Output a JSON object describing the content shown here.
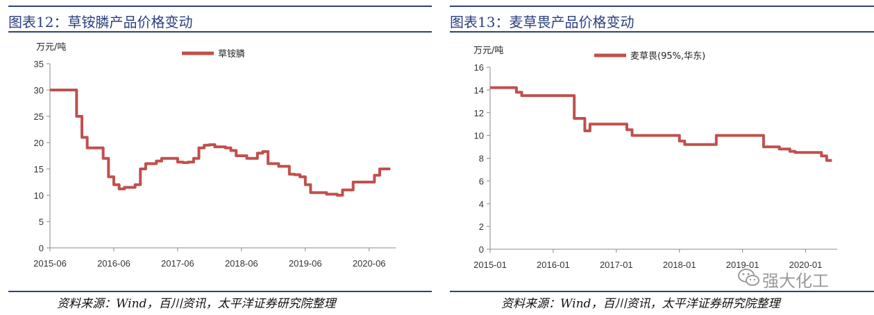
{
  "panels": [
    {
      "title": "图表12：草铵膦产品价格变动",
      "source": "资料来源：Wind，百川资讯，太平洋证券研究院整理"
    },
    {
      "title": "图表13：麦草畏产品价格变动",
      "source": "资料来源：Wind，百川资讯，太平洋证券研究院整理"
    }
  ],
  "watermark": {
    "text": "强大化工"
  },
  "chart_data": [
    {
      "type": "line",
      "title": "图表12：草铵膦产品价格变动",
      "ylabel": "万元/吨",
      "xlabel": "",
      "ylim": [
        0,
        35
      ],
      "yticks": [
        0,
        5,
        10,
        15,
        20,
        25,
        30,
        35
      ],
      "xlim": [
        "2015-06",
        "2020-11"
      ],
      "xticks": [
        "2015-06",
        "2016-06",
        "2017-06",
        "2018-06",
        "2019-06",
        "2020-06"
      ],
      "legend_position": "top-center",
      "series_color": "#c0504d",
      "series": [
        {
          "name": "草铵膦",
          "x": [
            "2015-06",
            "2015-08",
            "2015-09",
            "2015-10",
            "2015-11",
            "2015-12",
            "2016-01",
            "2016-02",
            "2016-03",
            "2016-04",
            "2016-05",
            "2016-06",
            "2016-07",
            "2016-08",
            "2016-09",
            "2016-10",
            "2016-11",
            "2016-12",
            "2017-01",
            "2017-02",
            "2017-03",
            "2017-04",
            "2017-06",
            "2017-07",
            "2017-08",
            "2017-09",
            "2017-10",
            "2017-11",
            "2017-12",
            "2018-01",
            "2018-02",
            "2018-03",
            "2018-04",
            "2018-05",
            "2018-06",
            "2018-07",
            "2018-08",
            "2018-09",
            "2018-10",
            "2018-11",
            "2018-12",
            "2019-01",
            "2019-02",
            "2019-03",
            "2019-04",
            "2019-05",
            "2019-06",
            "2019-07",
            "2019-08",
            "2019-09",
            "2019-10",
            "2019-11",
            "2019-12",
            "2020-01",
            "2020-02",
            "2020-03",
            "2020-04",
            "2020-05",
            "2020-06",
            "2020-07",
            "2020-08",
            "2020-09",
            "2020-10"
          ],
          "values": [
            30,
            30,
            30,
            30,
            25,
            21,
            19,
            19,
            19,
            17,
            13.5,
            12,
            11.2,
            11.5,
            11.5,
            12,
            15,
            16,
            16,
            16.5,
            17,
            17,
            16.3,
            16.2,
            16.3,
            17,
            19,
            19.5,
            19.6,
            19.2,
            19.2,
            19,
            18.5,
            17.5,
            17.5,
            17,
            17,
            18,
            18.3,
            16,
            16,
            15.5,
            15.5,
            14,
            13.9,
            13.5,
            12,
            10.5,
            10.5,
            10.5,
            10.2,
            10.2,
            10,
            11,
            11,
            12.5,
            12.5,
            12.5,
            12.5,
            13.8,
            15,
            15,
            15
          ]
        }
      ]
    },
    {
      "type": "line",
      "title": "图表13：麦草畏产品价格变动",
      "ylabel": "万元/吨",
      "xlabel": "",
      "ylim": [
        0,
        16
      ],
      "yticks": [
        0,
        2,
        4,
        6,
        8,
        10,
        12,
        14,
        16
      ],
      "xlim": [
        "2015-01",
        "2020-07"
      ],
      "xticks": [
        "2015-01",
        "2016-01",
        "2017-01",
        "2018-01",
        "2019-01",
        "2020-01"
      ],
      "legend_position": "top-center",
      "series_color": "#c0504d",
      "series": [
        {
          "name": "麦草畏(95%,华东)",
          "x": [
            "2015-01",
            "2015-03",
            "2015-05",
            "2015-06",
            "2015-07",
            "2015-09",
            "2015-12",
            "2016-03",
            "2016-05",
            "2016-06",
            "2016-07",
            "2016-08",
            "2016-09",
            "2016-11",
            "2017-01",
            "2017-03",
            "2017-04",
            "2017-05",
            "2017-06",
            "2017-09",
            "2017-12",
            "2018-01",
            "2018-02",
            "2018-03",
            "2018-06",
            "2018-08",
            "2018-09",
            "2018-12",
            "2019-03",
            "2019-05",
            "2019-06",
            "2019-08",
            "2019-10",
            "2019-11",
            "2020-01",
            "2020-03",
            "2020-04",
            "2020-05",
            "2020-06"
          ],
          "values": [
            14.2,
            14.2,
            14.2,
            13.8,
            13.5,
            13.5,
            13.5,
            13.5,
            11.5,
            11.5,
            10.4,
            11,
            11,
            11,
            11,
            10.5,
            10,
            10,
            10,
            10,
            10,
            9.5,
            9.2,
            9.2,
            9.2,
            10,
            10,
            10,
            10,
            9,
            9,
            8.8,
            8.6,
            8.5,
            8.5,
            8.5,
            8.2,
            7.8,
            7.8
          ]
        }
      ]
    }
  ]
}
